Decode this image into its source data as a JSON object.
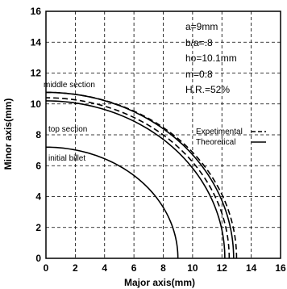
{
  "chart_data": {
    "type": "line",
    "xlabel": "Major axis(mm)",
    "ylabel": "Minor axis(mm)",
    "xlim": [
      0,
      16
    ],
    "ylim": [
      0,
      16
    ],
    "xticks": [
      "0",
      "2",
      "4",
      "6",
      "8",
      "10",
      "12",
      "14",
      "16"
    ],
    "yticks": [
      "0",
      "2",
      "4",
      "6",
      "8",
      "10",
      "12",
      "14",
      "16"
    ],
    "grid": true,
    "legend_position": "right",
    "annotations": [
      "a=9mm",
      "b/a=.8",
      "ho=10.1mm",
      "m=0.8",
      "H.R.=52%"
    ],
    "legend": [
      {
        "label": "Expetimental",
        "style": "dashed"
      },
      {
        "label": "Theoretical",
        "style": "solid"
      }
    ],
    "series": [
      {
        "label": "initial billet",
        "style": "solid",
        "a": 9.0,
        "b": 7.2
      },
      {
        "label": "top section",
        "style": "solid",
        "a": 12.2,
        "b": 10.2
      },
      {
        "label": "top section",
        "style": "dashed",
        "a": 12.5,
        "b": 10.4
      },
      {
        "label": "middle section",
        "style": "solid",
        "a": 12.8,
        "b": 10.75
      },
      {
        "label": "middle section",
        "style": "dashed",
        "a": 13.0,
        "b": 10.75
      }
    ]
  }
}
